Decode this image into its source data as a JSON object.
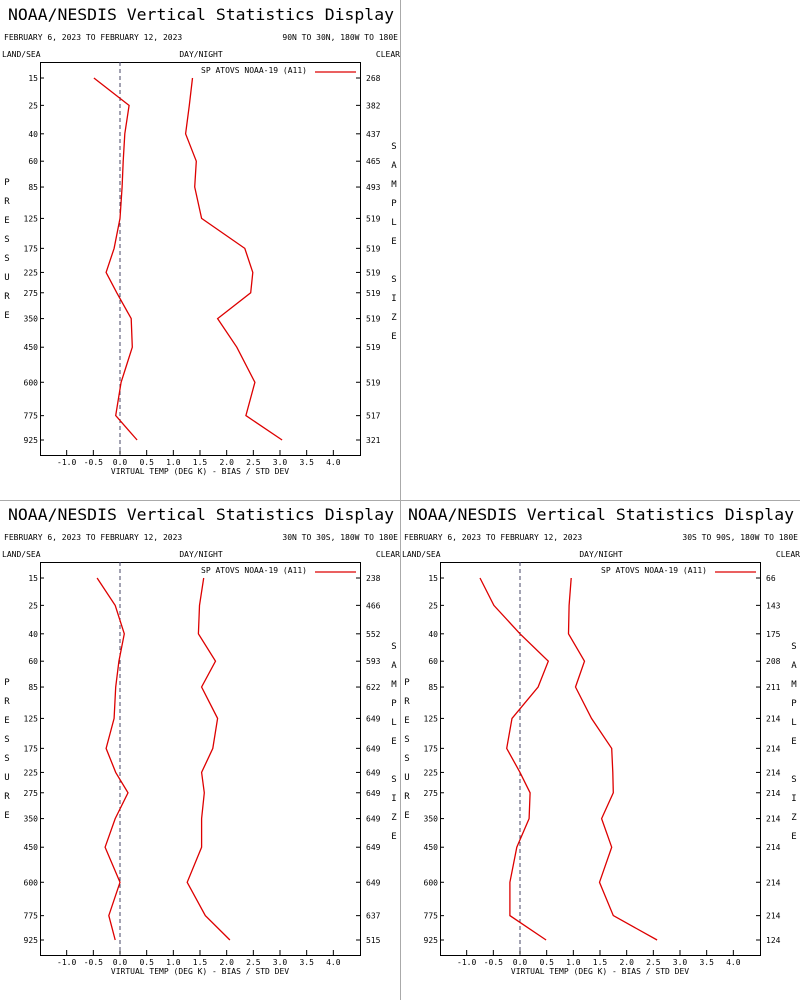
{
  "chart_data": [
    {
      "type": "profile",
      "title": "NOAA/NESDIS Vertical Statistics Display",
      "date_range": "FEBRUARY 6, 2023 TO FEBRUARY 12, 2023",
      "region": "90N TO 30N, 180W TO 180E",
      "land_sea": "LAND/SEA",
      "day_night": "DAY/NIGHT",
      "clear": "CLEAR",
      "y_label": "PRESSURE",
      "y2_label": "SAMPLE SIZE",
      "x_label": "VIRTUAL TEMP (DEG K) - BIAS / STD DEV",
      "levels": [
        15,
        25,
        40,
        60,
        85,
        125,
        175,
        225,
        275,
        350,
        450,
        600,
        775,
        925
      ],
      "sample_size": [
        268,
        382,
        437,
        465,
        493,
        519,
        519,
        519,
        519,
        519,
        519,
        519,
        517,
        321
      ],
      "series": [
        {
          "name": "SP ATOVS NOAA-19 (A11)",
          "color": "#dd0000",
          "bias": [
            -0.49,
            0.17,
            0.09,
            0.06,
            0.04,
            0.0,
            -0.11,
            -0.26,
            -0.06,
            0.21,
            0.23,
            0.02,
            -0.08,
            0.32
          ],
          "std_dev": [
            1.36,
            1.3,
            1.23,
            1.43,
            1.4,
            1.53,
            2.34,
            2.49,
            2.45,
            1.83,
            2.19,
            2.53,
            2.36,
            3.04
          ]
        }
      ],
      "reference_line": 0,
      "xlim": [
        -1.5,
        4.5
      ],
      "xticks": [
        {
          "value": -1,
          "label": "-1.0"
        },
        -0.5,
        {
          "value": 0,
          "label": "0.0"
        },
        0.5,
        {
          "value": 1,
          "label": "1.0"
        },
        1.5,
        {
          "value": 2,
          "label": "2.0"
        },
        2.5,
        {
          "value": 3,
          "label": "3.0"
        },
        3.5,
        {
          "value": 4,
          "label": "4.0"
        }
      ]
    },
    {
      "type": "profile",
      "title": "NOAA/NESDIS Vertical Statistics Display",
      "date_range": "FEBRUARY 6, 2023 TO FEBRUARY 12, 2023",
      "region": "30N TO 30S, 180W TO 180E",
      "land_sea": "LAND/SEA",
      "day_night": "DAY/NIGHT",
      "clear": "CLEAR",
      "y_label": "PRESSURE",
      "y2_label": "SAMPLE SIZE",
      "x_label": "VIRTUAL TEMP (DEG K) - BIAS / STD DEV",
      "levels": [
        15,
        25,
        40,
        60,
        85,
        125,
        175,
        225,
        275,
        350,
        450,
        600,
        775,
        925
      ],
      "sample_size": [
        238,
        466,
        552,
        593,
        622,
        649,
        649,
        649,
        649,
        649,
        649,
        649,
        637,
        515
      ],
      "series": [
        {
          "name": "SP ATOVS NOAA-19 (A11)",
          "color": "#dd0000",
          "bias": [
            -0.43,
            -0.09,
            0.08,
            -0.02,
            -0.08,
            -0.11,
            -0.26,
            -0.08,
            0.15,
            -0.09,
            -0.28,
            0.0,
            -0.21,
            -0.09
          ],
          "std_dev": [
            1.57,
            1.49,
            1.47,
            1.79,
            1.53,
            1.83,
            1.74,
            1.53,
            1.58,
            1.53,
            1.53,
            1.26,
            1.6,
            2.06
          ]
        }
      ],
      "reference_line": 0,
      "xlim": [
        -1.5,
        4.5
      ],
      "xticks": [
        {
          "value": -1,
          "label": "-1.0"
        },
        -0.5,
        {
          "value": 0,
          "label": "0.0"
        },
        0.5,
        {
          "value": 1,
          "label": "1.0"
        },
        1.5,
        {
          "value": 2,
          "label": "2.0"
        },
        2.5,
        {
          "value": 3,
          "label": "3.0"
        },
        3.5,
        {
          "value": 4,
          "label": "4.0"
        }
      ]
    },
    {
      "type": "profile",
      "title": "NOAA/NESDIS Vertical Statistics Display",
      "date_range": "FEBRUARY 6, 2023 TO FEBRUARY 12, 2023",
      "region": "30S TO 90S, 180W TO 180E",
      "land_sea": "LAND/SEA",
      "day_night": "DAY/NIGHT",
      "clear": "CLEAR",
      "y_label": "PRESSURE",
      "y2_label": "SAMPLE SIZE",
      "x_label": "VIRTUAL TEMP (DEG K) - BIAS / STD DEV",
      "levels": [
        15,
        25,
        40,
        60,
        85,
        125,
        175,
        225,
        275,
        350,
        450,
        600,
        775,
        925
      ],
      "sample_size": [
        66,
        143,
        175,
        208,
        211,
        214,
        214,
        214,
        214,
        214,
        214,
        214,
        214,
        124
      ],
      "series": [
        {
          "name": "SP ATOVS NOAA-19 (A11)",
          "color": "#dd0000",
          "bias": [
            -0.75,
            -0.49,
            0.0,
            0.53,
            0.34,
            -0.15,
            -0.25,
            0.0,
            0.19,
            0.17,
            -0.06,
            -0.19,
            -0.19,
            0.49
          ],
          "std_dev": [
            0.96,
            0.92,
            0.91,
            1.21,
            1.04,
            1.34,
            1.72,
            1.74,
            1.75,
            1.53,
            1.72,
            1.49,
            1.75,
            2.57
          ]
        }
      ],
      "reference_line": 0,
      "xlim": [
        -1.5,
        4.5
      ],
      "xticks": [
        {
          "value": -1,
          "label": "-1.0"
        },
        -0.5,
        {
          "value": 0,
          "label": "0.0"
        },
        0.5,
        {
          "value": 1,
          "label": "1.0"
        },
        1.5,
        {
          "value": 2,
          "label": "2.0"
        },
        2.5,
        {
          "value": 3,
          "label": "3.0"
        },
        3.5,
        {
          "value": 4,
          "label": "4.0"
        }
      ]
    }
  ]
}
